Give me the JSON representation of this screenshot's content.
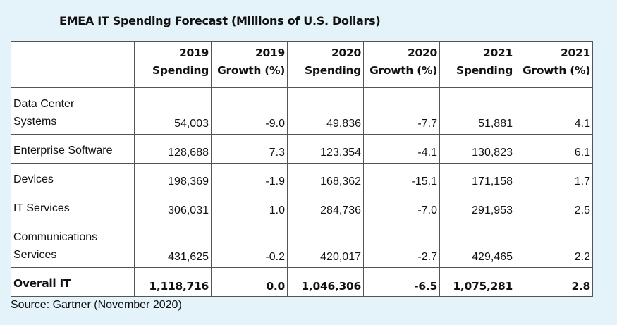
{
  "chart_data": {
    "type": "table",
    "title": "EMEA IT Spending Forecast (Millions of U.S. Dollars)",
    "columns": [
      "",
      "2019 Spending",
      "2019 Growth (%)",
      "2020 Spending",
      "2020 Growth (%)",
      "2021 Spending",
      "2021 Growth (%)"
    ],
    "header": [
      {
        "year": "2019",
        "metric": "Spending"
      },
      {
        "year": "2019",
        "metric": "Growth (%)"
      },
      {
        "year": "2020",
        "metric": "Spending"
      },
      {
        "year": "2020",
        "metric": "Growth (%)"
      },
      {
        "year": "2021",
        "metric": "Spending"
      },
      {
        "year": "2021",
        "metric": "Growth (%)"
      }
    ],
    "rows": [
      {
        "label": [
          "Data Center",
          "Systems"
        ],
        "values": [
          "54,003",
          "-9.0",
          "49,836",
          "-7.7",
          "51,881",
          "4.1"
        ]
      },
      {
        "label": [
          "Enterprise Software"
        ],
        "values": [
          "128,688",
          "7.3",
          "123,354",
          "-4.1",
          "130,823",
          "6.1"
        ]
      },
      {
        "label": [
          "Devices"
        ],
        "values": [
          "198,369",
          "-1.9",
          "168,362",
          "-15.1",
          "171,158",
          "1.7"
        ]
      },
      {
        "label": [
          "IT Services"
        ],
        "values": [
          "306,031",
          "1.0",
          "284,736",
          "-7.0",
          "291,953",
          "2.5"
        ]
      },
      {
        "label": [
          "Communications",
          "Services"
        ],
        "values": [
          "431,625",
          "-0.2",
          "420,017",
          "-2.7",
          "429,465",
          "2.2"
        ]
      }
    ],
    "total": {
      "label": "Overall IT",
      "values": [
        "1,118,716",
        "0.0",
        "1,046,306",
        "-6.5",
        "1,075,281",
        "2.8"
      ]
    },
    "source": "Source: Gartner (November 2020)"
  }
}
